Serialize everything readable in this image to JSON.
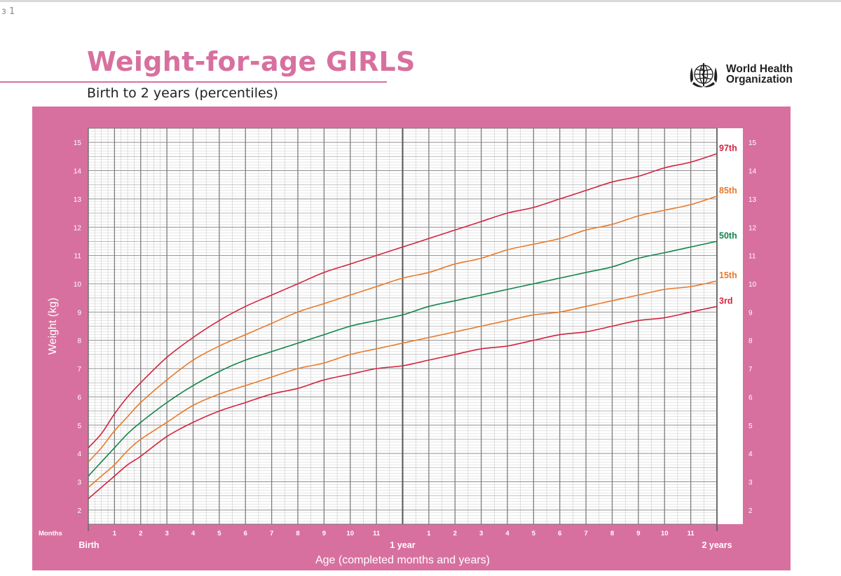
{
  "page_marker": "з 1",
  "header": {
    "title": "Weight-for-age GIRLS",
    "subtitle": "Birth to 2 years (percentiles)",
    "org_line1": "World Health",
    "org_line2": "Organization",
    "logo_icon": "who-emblem-icon"
  },
  "colors": {
    "frame": "#d8709f",
    "grid": "#a7a7a7",
    "p3": "#d1243f",
    "p15": "#e87a2a",
    "p50": "#12844a",
    "p85": "#e87a2a",
    "p97": "#d1243f"
  },
  "chart_data": {
    "type": "line",
    "title": "Weight-for-age GIRLS",
    "subtitle": "Birth to 2 years (percentiles)",
    "xlabel": "Age (completed months and years)",
    "ylabel": "Weight (kg)",
    "xlim": [
      0,
      24
    ],
    "ylim": [
      1.5,
      15.5
    ],
    "y_ticks": [
      2,
      3,
      4,
      5,
      6,
      7,
      8,
      9,
      10,
      11,
      12,
      13,
      14,
      15
    ],
    "x_row_label": "Months",
    "x_month_ticks": [
      {
        "x": 1,
        "label": "1"
      },
      {
        "x": 2,
        "label": "2"
      },
      {
        "x": 3,
        "label": "3"
      },
      {
        "x": 4,
        "label": "4"
      },
      {
        "x": 5,
        "label": "5"
      },
      {
        "x": 6,
        "label": "6"
      },
      {
        "x": 7,
        "label": "7"
      },
      {
        "x": 8,
        "label": "8"
      },
      {
        "x": 9,
        "label": "9"
      },
      {
        "x": 10,
        "label": "10"
      },
      {
        "x": 11,
        "label": "11"
      },
      {
        "x": 13,
        "label": "1"
      },
      {
        "x": 14,
        "label": "2"
      },
      {
        "x": 15,
        "label": "3"
      },
      {
        "x": 16,
        "label": "4"
      },
      {
        "x": 17,
        "label": "5"
      },
      {
        "x": 18,
        "label": "6"
      },
      {
        "x": 19,
        "label": "7"
      },
      {
        "x": 20,
        "label": "8"
      },
      {
        "x": 21,
        "label": "9"
      },
      {
        "x": 22,
        "label": "10"
      },
      {
        "x": 23,
        "label": "11"
      }
    ],
    "x_year_ticks": [
      {
        "x": 0,
        "label": "Birth"
      },
      {
        "x": 12,
        "label": "1 year"
      },
      {
        "x": 24,
        "label": "2 years"
      }
    ],
    "grid": true,
    "x": [
      0,
      0.5,
      1,
      1.5,
      2,
      3,
      4,
      5,
      6,
      7,
      8,
      9,
      10,
      11,
      12,
      13,
      14,
      15,
      16,
      17,
      18,
      19,
      20,
      21,
      22,
      23,
      24
    ],
    "series": [
      {
        "name": "3rd",
        "color_key": "p3",
        "values": [
          2.4,
          2.8,
          3.2,
          3.6,
          3.9,
          4.6,
          5.1,
          5.5,
          5.8,
          6.1,
          6.3,
          6.6,
          6.8,
          7.0,
          7.1,
          7.3,
          7.5,
          7.7,
          7.8,
          8.0,
          8.2,
          8.3,
          8.5,
          8.7,
          8.8,
          9.0,
          9.2
        ]
      },
      {
        "name": "15th",
        "color_key": "p15",
        "values": [
          2.8,
          3.2,
          3.6,
          4.1,
          4.5,
          5.1,
          5.7,
          6.1,
          6.4,
          6.7,
          7.0,
          7.2,
          7.5,
          7.7,
          7.9,
          8.1,
          8.3,
          8.5,
          8.7,
          8.9,
          9.0,
          9.2,
          9.4,
          9.6,
          9.8,
          9.9,
          10.1
        ]
      },
      {
        "name": "50th",
        "color_key": "p50",
        "values": [
          3.2,
          3.7,
          4.2,
          4.7,
          5.1,
          5.8,
          6.4,
          6.9,
          7.3,
          7.6,
          7.9,
          8.2,
          8.5,
          8.7,
          8.9,
          9.2,
          9.4,
          9.6,
          9.8,
          10.0,
          10.2,
          10.4,
          10.6,
          10.9,
          11.1,
          11.3,
          11.5
        ]
      },
      {
        "name": "85th",
        "color_key": "p85",
        "values": [
          3.7,
          4.2,
          4.8,
          5.3,
          5.8,
          6.6,
          7.3,
          7.8,
          8.2,
          8.6,
          9.0,
          9.3,
          9.6,
          9.9,
          10.2,
          10.4,
          10.7,
          10.9,
          11.2,
          11.4,
          11.6,
          11.9,
          12.1,
          12.4,
          12.6,
          12.8,
          13.1
        ]
      },
      {
        "name": "97th",
        "color_key": "p97",
        "values": [
          4.2,
          4.7,
          5.4,
          6.0,
          6.5,
          7.4,
          8.1,
          8.7,
          9.2,
          9.6,
          10.0,
          10.4,
          10.7,
          11.0,
          11.3,
          11.6,
          11.9,
          12.2,
          12.5,
          12.7,
          13.0,
          13.3,
          13.6,
          13.8,
          14.1,
          14.3,
          14.6
        ]
      }
    ]
  }
}
